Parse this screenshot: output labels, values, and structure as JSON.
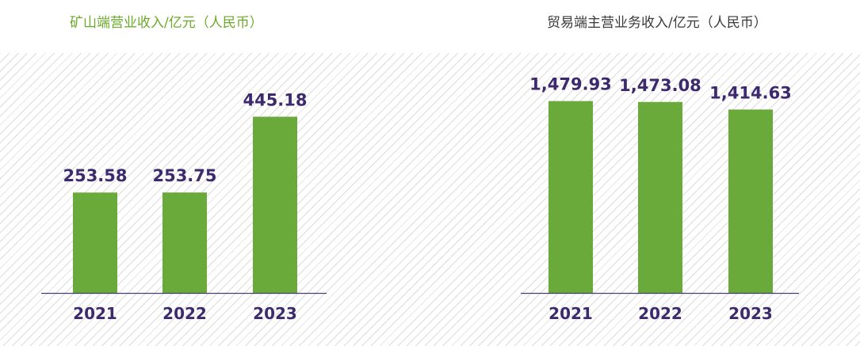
{
  "chart_data": [
    {
      "type": "bar",
      "title": "矿山端营业收入/亿元（人民币）",
      "categories": [
        "2021",
        "2022",
        "2023"
      ],
      "values": [
        253.58,
        253.75,
        445.18
      ],
      "value_labels": [
        "253.58",
        "253.75",
        "445.18"
      ],
      "ylim": [
        0,
        600
      ],
      "grid": false,
      "bar_color": "#6aaa3a",
      "title_color": "#6aaa2b"
    },
    {
      "type": "bar",
      "title": "贸易端主营业务收入/亿元（人民币）",
      "categories": [
        "2021",
        "2022",
        "2023"
      ],
      "values": [
        1479.93,
        1473.08,
        1414.63
      ],
      "value_labels": [
        "1,479.93",
        "1,473.08",
        "1,414.63"
      ],
      "ylim": [
        0,
        1832
      ],
      "grid": false,
      "bar_color": "#6aaa3a",
      "title_color": "#3a3a3a"
    }
  ],
  "colors": {
    "label_text": "#3d2a6e",
    "axis_line": "#4a3f73",
    "background_hatch": "#dcdcdc"
  }
}
